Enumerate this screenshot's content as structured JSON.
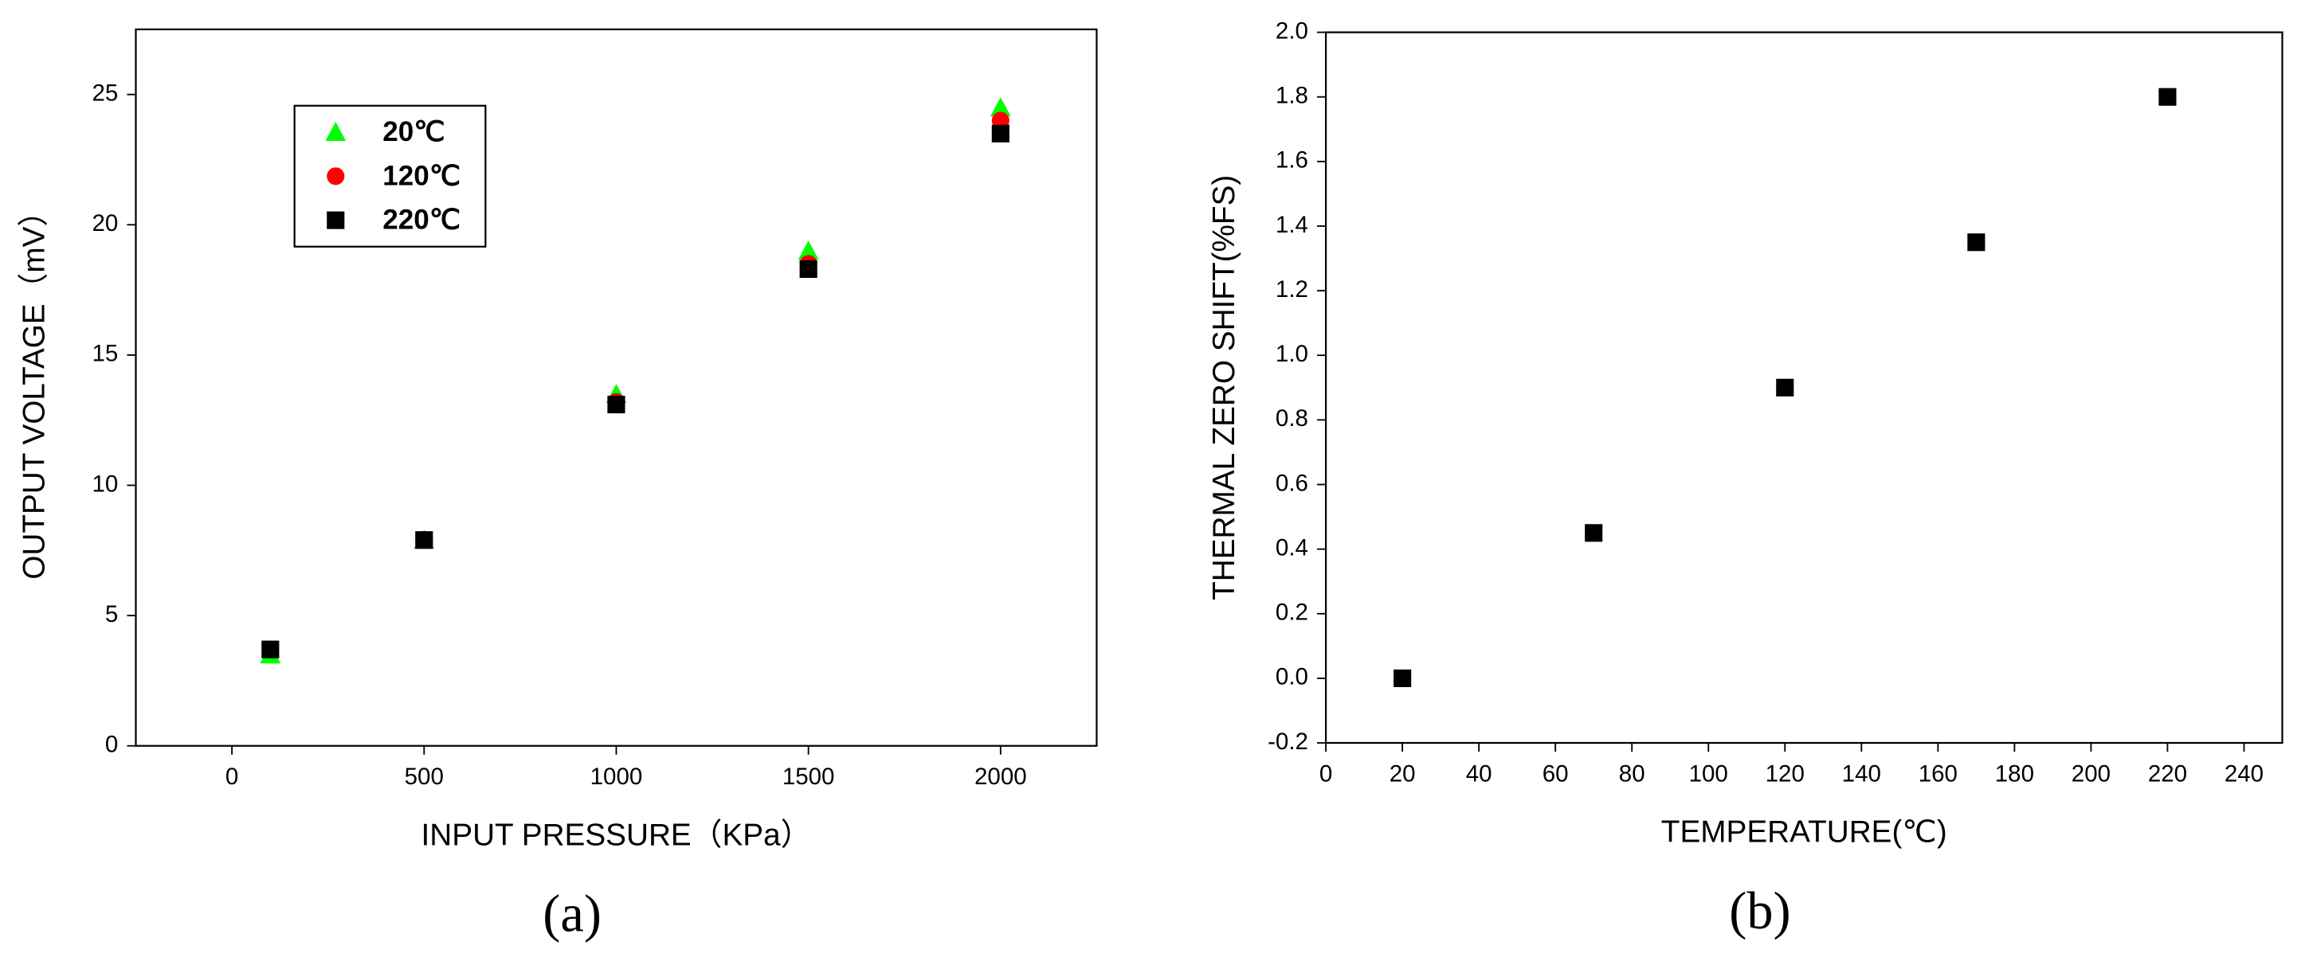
{
  "chart_data": [
    {
      "type": "scatter",
      "caption": "(a)",
      "x_label": "INPUT PRESSURE（KPa）",
      "y_label": "OUTPUT VOLTAGE（mV）",
      "x": [
        100,
        500,
        1000,
        1500,
        2000
      ],
      "xlim": [
        -250,
        2250
      ],
      "xticks": [
        0,
        500,
        1000,
        1500,
        2000
      ],
      "ylim": [
        0,
        27.5
      ],
      "yticks": [
        0,
        5,
        10,
        15,
        20,
        25
      ],
      "legend": "upper left",
      "series": [
        {
          "name": "20℃",
          "color": "#00ff00",
          "marker": "triangle",
          "values": [
            3.5,
            7.9,
            13.5,
            19.0,
            24.5
          ]
        },
        {
          "name": "120℃",
          "color": "#ff0000",
          "marker": "circle",
          "values": [
            3.7,
            7.9,
            13.2,
            18.5,
            24.0
          ]
        },
        {
          "name": "220℃",
          "color": "#000000",
          "marker": "square",
          "values": [
            3.7,
            7.9,
            13.1,
            18.3,
            23.5
          ]
        }
      ]
    },
    {
      "type": "scatter",
      "caption": "(b)",
      "x_label": "TEMPERATURE(℃)",
      "y_label": "THERMAL ZERO SHIFT(%FS)",
      "x": [
        20,
        70,
        120,
        170,
        220
      ],
      "xlim": [
        0,
        250
      ],
      "xticks": [
        0,
        20,
        40,
        60,
        80,
        100,
        120,
        140,
        160,
        180,
        200,
        220,
        240
      ],
      "ylim": [
        -0.2,
        2.0
      ],
      "yticks": [
        -0.2,
        {
          "value": 0,
          "label": "0.0"
        },
        0.2,
        0.4,
        0.6,
        0.8,
        {
          "value": 1,
          "label": "1.0"
        },
        1.2,
        1.4,
        1.6,
        1.8,
        {
          "value": 2,
          "label": "2.0"
        }
      ],
      "series": [
        {
          "color": "#000000",
          "marker": "square",
          "values": [
            0.0,
            0.45,
            0.9,
            1.35,
            1.8
          ]
        }
      ]
    }
  ]
}
